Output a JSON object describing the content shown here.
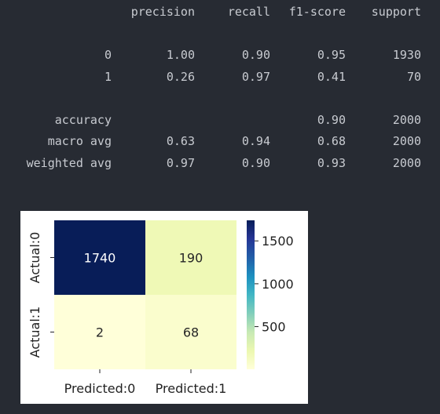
{
  "report": {
    "headers": [
      "precision",
      "recall",
      "f1-score",
      "support"
    ],
    "rows": [
      {
        "label": "0",
        "precision": "1.00",
        "recall": "0.90",
        "f1": "0.95",
        "support": "1930"
      },
      {
        "label": "1",
        "precision": "0.26",
        "recall": "0.97",
        "f1": "0.41",
        "support": "70"
      },
      {
        "label": "accuracy",
        "precision": "",
        "recall": "",
        "f1": "0.90",
        "support": "2000"
      },
      {
        "label": "macro avg",
        "precision": "0.63",
        "recall": "0.94",
        "f1": "0.68",
        "support": "2000"
      },
      {
        "label": "weighted avg",
        "precision": "0.97",
        "recall": "0.90",
        "f1": "0.93",
        "support": "2000"
      }
    ]
  },
  "chart_data": {
    "type": "heatmap",
    "x_labels": [
      "Predicted:0",
      "Predicted:1"
    ],
    "y_labels": [
      "Actual:0",
      "Actual:1"
    ],
    "values": [
      [
        1740,
        190
      ],
      [
        2,
        68
      ]
    ],
    "colormap": "YlGnBu",
    "colorbar": {
      "range": [
        2,
        1740
      ],
      "ticks": [
        "500",
        "1000",
        "1500"
      ],
      "tick_values": [
        500,
        1000,
        1500
      ]
    },
    "colors": {
      "high": "#0c2a6e",
      "low": "#fefed6",
      "mid_light": "#ecf8b8",
      "mid": "#f6fbc6"
    }
  }
}
